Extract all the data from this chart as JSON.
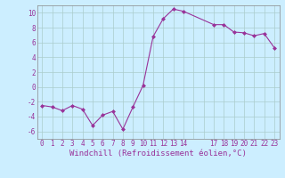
{
  "x_data": [
    0,
    1,
    2,
    3,
    4,
    5,
    6,
    7,
    8,
    9,
    10,
    11,
    12,
    13,
    14,
    17,
    18,
    19,
    20,
    21,
    22,
    23
  ],
  "y_data": [
    -2.5,
    -2.7,
    -3.2,
    -2.5,
    -3.0,
    -5.2,
    -3.8,
    -3.3,
    -5.7,
    -2.7,
    0.2,
    6.8,
    9.2,
    10.5,
    10.2,
    8.4,
    8.4,
    7.4,
    7.3,
    6.9,
    7.2,
    5.3
  ],
  "line_color": "#993399",
  "marker": "D",
  "marker_size": 2,
  "bg_color": "#cceeff",
  "grid_color": "#aacccc",
  "ylim": [
    -7,
    11
  ],
  "yticks": [
    -6,
    -4,
    -2,
    0,
    2,
    4,
    6,
    8,
    10
  ],
  "xlim": [
    -0.5,
    23.5
  ],
  "xtick_labels": [
    "0",
    "1",
    "2",
    "3",
    "4",
    "5",
    "6",
    "7",
    "8",
    "9",
    "10",
    "11",
    "12",
    "13",
    "14",
    "",
    "",
    "17",
    "18",
    "19",
    "20",
    "21",
    "22",
    "23"
  ],
  "xlabel": "Windchill (Refroidissement éolien,°C)",
  "tick_color": "#993399",
  "tick_fontsize": 5.5,
  "xlabel_fontsize": 6.5,
  "spine_color": "#888888"
}
